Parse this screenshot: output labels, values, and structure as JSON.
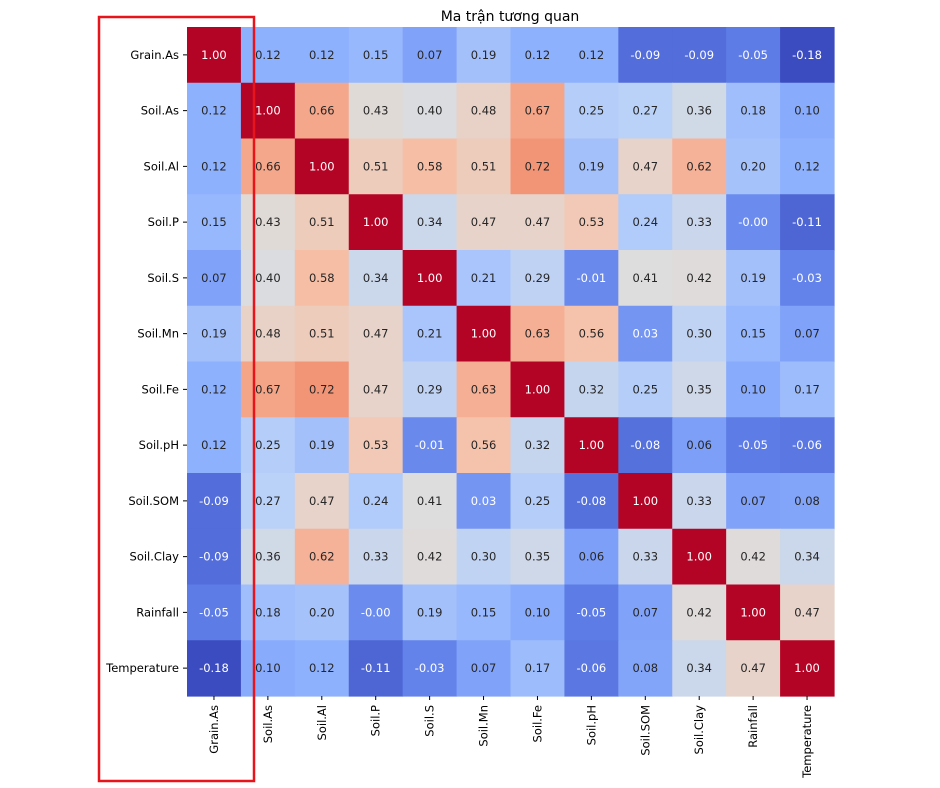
{
  "chart_data": {
    "type": "heatmap",
    "title": "Ma trận tương quan",
    "xlabel": "",
    "ylabel": "",
    "colormap": "coolwarm",
    "value_range": [
      -0.18,
      1.0
    ],
    "x_categories": [
      "Grain.As",
      "Soil.As",
      "Soil.Al",
      "Soil.P",
      "Soil.S",
      "Soil.Mn",
      "Soil.Fe",
      "Soil.pH",
      "Soil.SOM",
      "Soil.Clay",
      "Rainfall",
      "Temperature"
    ],
    "y_categories": [
      "Grain.As",
      "Soil.As",
      "Soil.Al",
      "Soil.P",
      "Soil.S",
      "Soil.Mn",
      "Soil.Fe",
      "Soil.pH",
      "Soil.SOM",
      "Soil.Clay",
      "Rainfall",
      "Temperature"
    ],
    "values": [
      [
        1.0,
        0.12,
        0.12,
        0.15,
        0.07,
        0.19,
        0.12,
        0.12,
        -0.09,
        -0.09,
        -0.05,
        -0.18
      ],
      [
        0.12,
        1.0,
        0.66,
        0.43,
        0.4,
        0.48,
        0.67,
        0.25,
        0.27,
        0.36,
        0.18,
        0.1
      ],
      [
        0.12,
        0.66,
        1.0,
        0.51,
        0.58,
        0.51,
        0.72,
        0.19,
        0.47,
        0.62,
        0.2,
        0.12
      ],
      [
        0.15,
        0.43,
        0.51,
        1.0,
        0.34,
        0.47,
        0.47,
        0.53,
        0.24,
        0.33,
        -0.0,
        -0.11
      ],
      [
        0.07,
        0.4,
        0.58,
        0.34,
        1.0,
        0.21,
        0.29,
        -0.01,
        0.41,
        0.42,
        0.19,
        -0.03
      ],
      [
        0.19,
        0.48,
        0.51,
        0.47,
        0.21,
        1.0,
        0.63,
        0.56,
        0.03,
        0.3,
        0.15,
        0.07
      ],
      [
        0.12,
        0.67,
        0.72,
        0.47,
        0.29,
        0.63,
        1.0,
        0.32,
        0.25,
        0.35,
        0.1,
        0.17
      ],
      [
        0.12,
        0.25,
        0.19,
        0.53,
        -0.01,
        0.56,
        0.32,
        1.0,
        -0.08,
        0.06,
        -0.05,
        -0.06
      ],
      [
        -0.09,
        0.27,
        0.47,
        0.24,
        0.41,
        0.03,
        0.25,
        -0.08,
        1.0,
        0.33,
        0.07,
        0.08
      ],
      [
        -0.09,
        0.36,
        0.62,
        0.33,
        0.42,
        0.3,
        0.35,
        0.06,
        0.33,
        1.0,
        0.42,
        0.34
      ],
      [
        -0.05,
        0.18,
        0.2,
        -0.0,
        0.19,
        0.15,
        0.1,
        -0.05,
        0.07,
        0.42,
        1.0,
        0.47
      ],
      [
        -0.18,
        0.1,
        0.12,
        -0.11,
        -0.03,
        0.07,
        0.17,
        -0.06,
        0.08,
        0.34,
        0.47,
        1.0
      ]
    ],
    "annotation_format": "0.00",
    "highlight": {
      "target": "Grain.As",
      "color": "#e8141b",
      "style": "rectangle outline around Grain.As column and its tick label"
    }
  }
}
